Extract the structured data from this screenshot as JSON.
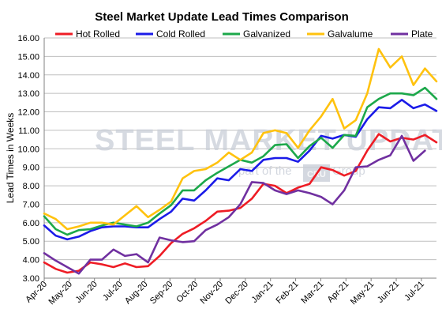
{
  "chart_data": {
    "type": "line",
    "title": "Steel Market Update Lead Times Comparison",
    "ylabel": "Lead Times in Weeks",
    "xlabel": "",
    "ylim": [
      3.0,
      16.0
    ],
    "yticks": [
      "3.00",
      "4.00",
      "5.00",
      "6.00",
      "7.00",
      "8.00",
      "9.00",
      "10.00",
      "11.00",
      "12.00",
      "13.00",
      "14.00",
      "15.00",
      "16.00"
    ],
    "xticks": [
      "Apr-20",
      "May-20",
      "Jun-20",
      "Jul-20",
      "Aug-20",
      "Sep-20",
      "Oct-20",
      "Nov-20",
      "Dec-20",
      "Jan-21",
      "Feb-21",
      "Mar-21",
      "Apr-21",
      "May-21",
      "Jun-21",
      "Jul-21"
    ],
    "grid": true,
    "legend_position": "top",
    "series": [
      {
        "name": "Hot Rolled",
        "color": "#ee1c25",
        "values": [
          3.85,
          3.5,
          3.3,
          3.4,
          3.85,
          3.75,
          3.6,
          3.8,
          3.6,
          3.65,
          4.2,
          4.9,
          5.4,
          5.7,
          6.1,
          6.6,
          6.65,
          6.8,
          7.3,
          8.1,
          8.0,
          7.6,
          7.9,
          8.1,
          9.0,
          8.85,
          8.55,
          8.8,
          9.9,
          10.8,
          10.4,
          10.6,
          10.5,
          10.75,
          10.35
        ]
      },
      {
        "name": "Cold Rolled",
        "color": "#1b1be8",
        "values": [
          5.85,
          5.3,
          5.1,
          5.25,
          5.55,
          5.75,
          5.8,
          5.8,
          5.75,
          5.75,
          6.2,
          6.6,
          7.3,
          7.2,
          7.75,
          8.4,
          8.3,
          8.9,
          8.8,
          9.4,
          9.5,
          9.5,
          9.3,
          9.9,
          10.7,
          10.55,
          10.75,
          10.65,
          11.6,
          12.25,
          12.2,
          12.65,
          12.2,
          12.4,
          12.05
        ]
      },
      {
        "name": "Galvanized",
        "color": "#1ca84a",
        "values": [
          6.35,
          5.65,
          5.35,
          5.6,
          5.65,
          5.85,
          6.0,
          5.9,
          5.8,
          6.0,
          6.5,
          6.95,
          7.75,
          7.75,
          8.3,
          8.7,
          9.05,
          9.4,
          9.25,
          9.6,
          10.2,
          10.25,
          9.5,
          10.15,
          10.6,
          10.05,
          10.75,
          10.7,
          12.25,
          12.7,
          13.0,
          13.0,
          12.9,
          13.3,
          12.7
        ]
      },
      {
        "name": "Galvalume",
        "color": "#ffc20e",
        "values": [
          6.5,
          6.2,
          5.65,
          5.8,
          6.0,
          6.0,
          5.9,
          6.4,
          6.9,
          6.3,
          6.7,
          7.15,
          8.4,
          8.8,
          8.9,
          9.25,
          9.8,
          9.4,
          9.8,
          10.85,
          11.0,
          10.85,
          10.05,
          11.0,
          11.75,
          12.7,
          11.1,
          11.55,
          13.0,
          15.4,
          14.4,
          15.0,
          13.45,
          14.35,
          13.65
        ]
      },
      {
        "name": "Plate",
        "color": "#7030a0",
        "values": [
          4.35,
          3.95,
          3.6,
          3.25,
          4.0,
          4.0,
          4.55,
          4.2,
          4.3,
          3.85,
          5.2,
          5.05,
          4.95,
          5.0,
          5.6,
          5.9,
          6.3,
          7.0,
          8.2,
          8.15,
          7.75,
          7.55,
          7.75,
          7.6,
          7.4,
          7.0,
          7.75,
          9.0,
          9.05,
          9.4,
          9.65,
          10.7,
          9.35,
          9.9
        ]
      }
    ]
  },
  "watermark": {
    "main": "STEEL MARKET UPDATE",
    "sub_before": "part of the",
    "sub_logo": "CRU",
    "sub_after": "Group"
  }
}
